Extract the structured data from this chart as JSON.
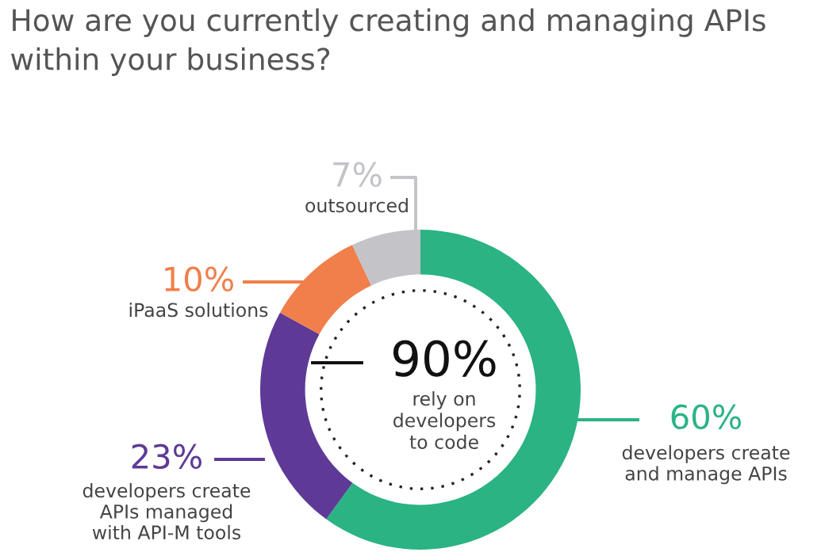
{
  "chart_data": {
    "type": "donut",
    "title": "How are you currently creating and managing APIs\nwithin your business?",
    "categories": [
      "developers create\nand manage APIs",
      "developers create\nAPIs managed\nwith API-M tools",
      "iPaaS solutions",
      "outsourced"
    ],
    "values": [
      60,
      23,
      10,
      7
    ],
    "colors": [
      "#2bb383",
      "#5e3a96",
      "#f07f4b",
      "#c3c3c8"
    ],
    "value_labels": [
      "60%",
      "23%",
      "10%",
      "7%"
    ],
    "annotations": [
      "90%",
      "rely on\ndevelopers\nto code"
    ]
  }
}
